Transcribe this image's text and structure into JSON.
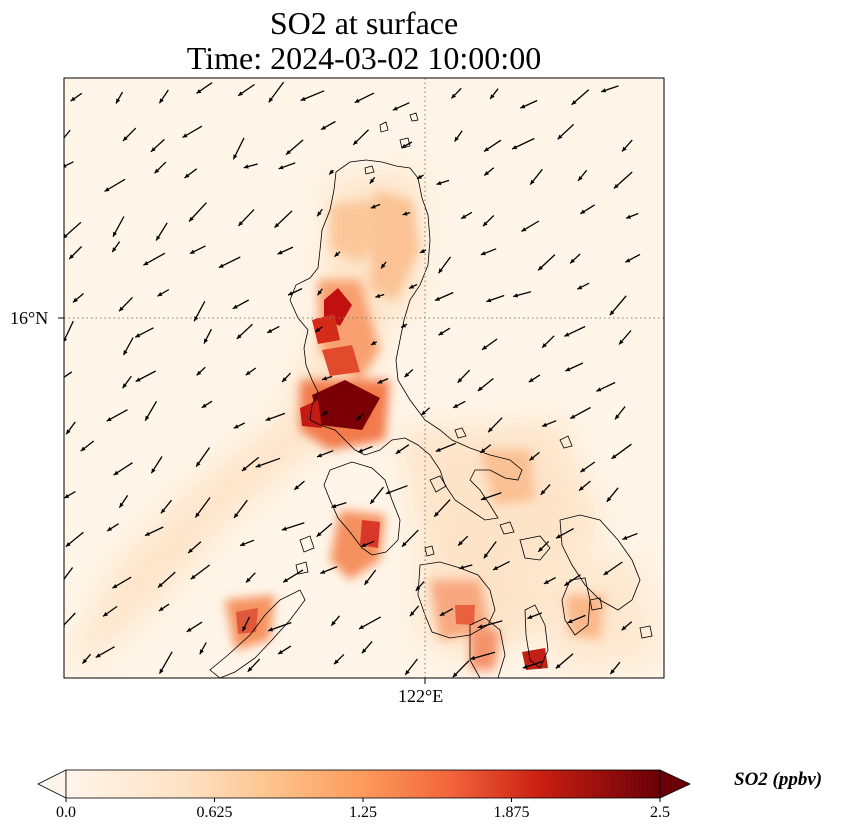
{
  "title": {
    "line1": "SO2 at surface",
    "line2": "Time: 2024-03-02 10:00:00"
  },
  "map": {
    "gridlines": {
      "lat_label": "16°N",
      "lon_label": "122°E"
    },
    "colors": {
      "frame": "#000000",
      "coastline": "#000000",
      "gridline": "#8a7a6a"
    }
  },
  "colorbar": {
    "label": "SO2 (ppbv)",
    "ticks": [
      "0.0",
      "0.625",
      "1.25",
      "1.875",
      "2.5"
    ],
    "colors": [
      "#fff5eb",
      "#fdd0a2",
      "#fdae6b",
      "#f16913",
      "#d94801",
      "#a30000",
      "#67000d"
    ]
  }
}
